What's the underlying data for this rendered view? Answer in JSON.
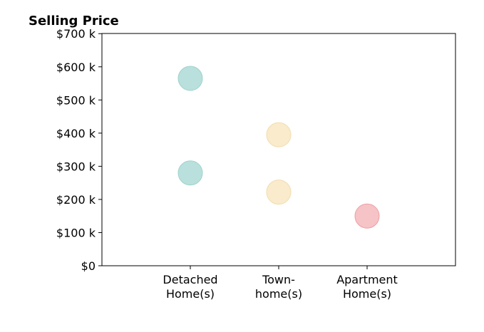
{
  "chart_data": {
    "type": "scatter",
    "title": "Selling Price",
    "xlabel": "",
    "ylabel": "",
    "categories": [
      [
        "Detached",
        "Home(s)"
      ],
      [
        "Town-",
        "home(s)"
      ],
      [
        "Apartment",
        "Home(s)"
      ]
    ],
    "x_range": [
      -1,
      3
    ],
    "ylim": [
      0,
      700
    ],
    "y_ticks": [
      {
        "value": 0,
        "label": "$0"
      },
      {
        "value": 100,
        "label": "$100 k"
      },
      {
        "value": 200,
        "label": "$200 k"
      },
      {
        "value": 300,
        "label": "$300 k"
      },
      {
        "value": 400,
        "label": "$400 k"
      },
      {
        "value": 500,
        "label": "$500 k"
      },
      {
        "value": 600,
        "label": "$600 k"
      },
      {
        "value": 700,
        "label": "$700 k"
      }
    ],
    "grid": false,
    "points": [
      {
        "category": 0,
        "y": 565,
        "fill": "#b9e0dc",
        "stroke": "#9fd2cd"
      },
      {
        "category": 0,
        "y": 280,
        "fill": "#b9e0dc",
        "stroke": "#9fd2cd"
      },
      {
        "category": 1,
        "y": 395,
        "fill": "#f9ebcb",
        "stroke": "#f3dcaf"
      },
      {
        "category": 1,
        "y": 222,
        "fill": "#f9ebcb",
        "stroke": "#f3dcaf"
      },
      {
        "category": 2,
        "y": 150,
        "fill": "#f6c3c6",
        "stroke": "#ee9ea3"
      }
    ]
  }
}
